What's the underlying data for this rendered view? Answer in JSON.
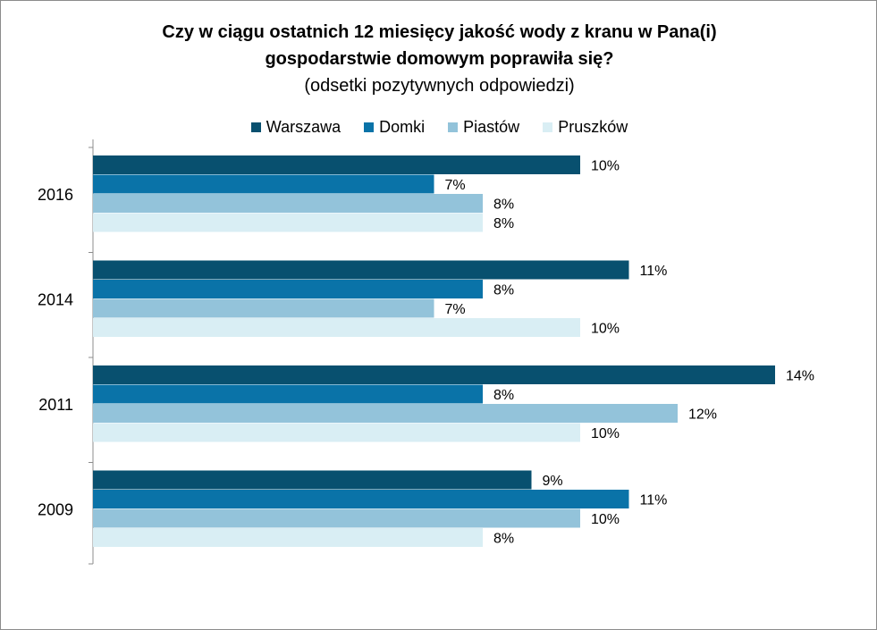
{
  "chart_data": {
    "type": "bar",
    "orientation": "horizontal",
    "title": "Czy w ciągu ostatnich 12 miesięcy jakość wody z kranu w Pana(i)",
    "title_line2": "gospodarstwie domowym poprawiła się?",
    "subtitle": "(odsetki pozytywnych odpowiedzi)",
    "categories": [
      "2016",
      "2014",
      "2011",
      "2009"
    ],
    "series": [
      {
        "name": "Warszawa",
        "color": "#08506f",
        "values": [
          10,
          11,
          14,
          9
        ],
        "labels": [
          "10%",
          "11%",
          "14%",
          "9%"
        ]
      },
      {
        "name": "Domki",
        "color": "#0a73a8",
        "values": [
          7,
          8,
          8,
          11
        ],
        "labels": [
          "7%",
          "8%",
          "8%",
          "11%"
        ]
      },
      {
        "name": "Piastów",
        "color": "#93c3da",
        "values": [
          8,
          7,
          12,
          10
        ],
        "labels": [
          "8%",
          "7%",
          "12%",
          "10%"
        ]
      },
      {
        "name": "Pruszków",
        "color": "#d9eef4",
        "values": [
          8,
          10,
          10,
          8
        ],
        "labels": [
          "8%",
          "10%",
          "10%",
          "8%"
        ]
      }
    ],
    "xlim": [
      0,
      16
    ],
    "grid": false,
    "legend": "top"
  }
}
